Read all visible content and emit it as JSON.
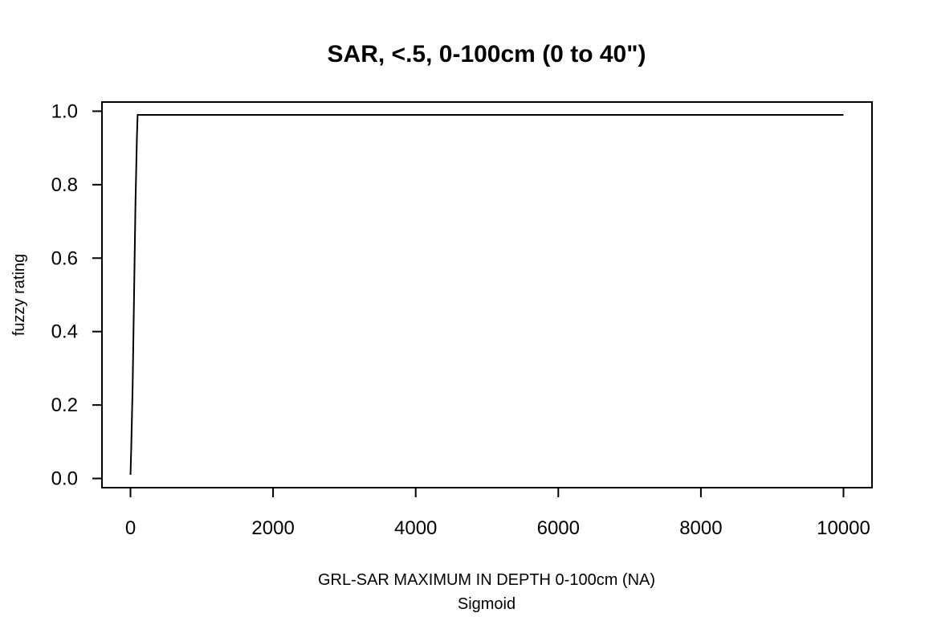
{
  "chart_data": {
    "type": "line",
    "title": "SAR, <.5, 0-100cm (0 to 40\")",
    "xlabel": "GRL-SAR MAXIMUM IN DEPTH 0-100cm (NA)",
    "xsublabel": "Sigmoid",
    "ylabel": "fuzzy rating",
    "xlim": [
      -400,
      10400
    ],
    "ylim": [
      -0.025,
      1.025
    ],
    "x_ticks": [
      0,
      2000,
      4000,
      6000,
      8000,
      10000
    ],
    "x_tick_labels": [
      "0",
      "2000",
      "4000",
      "6000",
      "8000",
      "10000"
    ],
    "y_ticks": [
      0.0,
      0.2,
      0.4,
      0.6,
      0.8,
      1.0
    ],
    "y_tick_labels": [
      "0.0",
      "0.2",
      "0.4",
      "0.6",
      "0.8",
      "1.0"
    ],
    "grid": false,
    "series": [
      {
        "x": [
          0,
          10,
          30,
          50,
          70,
          90,
          100,
          150,
          500,
          1000,
          5000,
          10000
        ],
        "y": [
          0.01,
          0.08,
          0.25,
          0.5,
          0.75,
          0.93,
          0.99,
          0.99,
          0.99,
          0.99,
          0.99,
          0.99
        ]
      }
    ]
  }
}
